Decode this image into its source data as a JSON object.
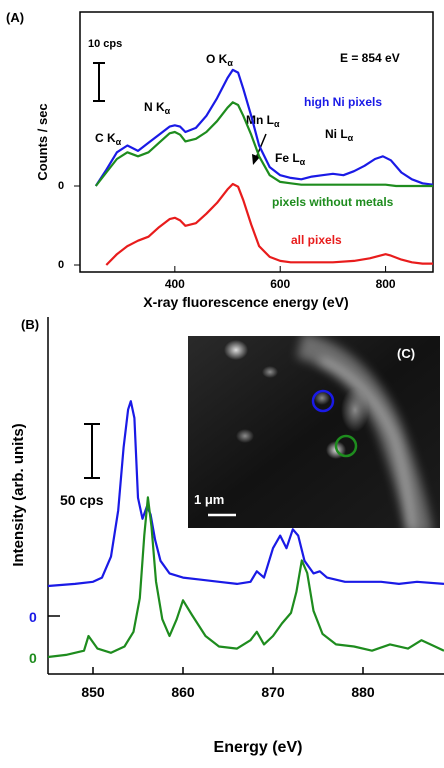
{
  "panel_a": {
    "label": "(A)",
    "scale_text": "10 cps",
    "energy_text": "E = 854 eV",
    "ylabel": "Counts / sec",
    "xlabel": "X-ray fluorescence energy (eV)",
    "zero_labels": [
      "0",
      "0"
    ],
    "peak_labels": {
      "c": "C K",
      "n": "N K",
      "o": "O K",
      "mn": "Mn L",
      "fe": "Fe L",
      "ni": "Ni L",
      "alpha": "α"
    },
    "legend": {
      "high_ni": "high Ni pixels",
      "without_metals": "pixels without metals",
      "all": "all pixels"
    }
  },
  "panel_b": {
    "label": "(B)",
    "scale_text": "50 cps",
    "ylabel": "Intensity (arb. units)",
    "xlabel": "Energy (eV)",
    "zero_labels": [
      "0",
      "0"
    ]
  },
  "panel_c": {
    "label": "(C)",
    "scale_text": "1 μm"
  },
  "colors": {
    "blue": "#1a1ae6",
    "green": "#1e8c1e",
    "red": "#e81c1c",
    "black": "#000000"
  },
  "chart_data": [
    {
      "type": "line",
      "title": "",
      "xlabel": "X-ray fluorescence energy (eV)",
      "ylabel": "Counts / sec",
      "xlim": [
        220,
        890
      ],
      "xticks": [
        400,
        600,
        800
      ],
      "series": [
        {
          "name": "high Ni pixels",
          "color": "#1a1ae6",
          "x": [
            250,
            270,
            290,
            310,
            330,
            350,
            370,
            390,
            400,
            410,
            420,
            440,
            460,
            480,
            500,
            510,
            520,
            530,
            545,
            560,
            580,
            600,
            620,
            640,
            660,
            680,
            700,
            720,
            740,
            760,
            780,
            795,
            810,
            830,
            850,
            870,
            890
          ],
          "y": [
            0,
            12,
            25,
            30,
            26,
            32,
            38,
            44,
            45,
            44,
            40,
            43,
            52,
            65,
            80,
            86,
            84,
            72,
            52,
            30,
            14,
            8,
            6,
            5,
            7,
            8,
            9,
            8,
            11,
            15,
            20,
            22,
            19,
            10,
            5,
            2,
            1
          ]
        },
        {
          "name": "pixels without metals",
          "color": "#1e8c1e",
          "x": [
            250,
            270,
            290,
            310,
            330,
            350,
            370,
            390,
            400,
            410,
            420,
            440,
            460,
            480,
            500,
            510,
            520,
            530,
            545,
            560,
            580,
            600,
            620,
            640,
            660,
            680,
            700,
            720,
            740,
            760,
            780,
            800,
            820,
            840,
            860,
            890
          ],
          "y": [
            0,
            10,
            20,
            25,
            22,
            25,
            32,
            39,
            40,
            38,
            33,
            35,
            40,
            48,
            58,
            62,
            60,
            52,
            38,
            22,
            8,
            3,
            2,
            1,
            1,
            1,
            1,
            1,
            1,
            1,
            1,
            1,
            0,
            0,
            0,
            0
          ]
        },
        {
          "name": "all pixels",
          "color": "#e81c1c",
          "x": [
            270,
            290,
            310,
            330,
            350,
            370,
            390,
            400,
            410,
            420,
            440,
            460,
            480,
            500,
            510,
            520,
            530,
            545,
            560,
            580,
            600,
            620,
            650,
            700,
            740,
            770,
            790,
            800,
            810,
            830,
            850,
            870,
            890
          ],
          "y": [
            0,
            8,
            14,
            18,
            21,
            28,
            34,
            35,
            33,
            29,
            31,
            38,
            46,
            56,
            60,
            58,
            48,
            30,
            14,
            6,
            3,
            2,
            2,
            2,
            3,
            5,
            7,
            8,
            7,
            4,
            2,
            1,
            1
          ]
        }
      ]
    },
    {
      "type": "line",
      "title": "",
      "xlabel": "Energy (eV)",
      "ylabel": "Intensity (arb. units)",
      "xlim": [
        845,
        889
      ],
      "xticks": [
        850,
        860,
        870,
        880
      ],
      "series": [
        {
          "name": "high Ni pixels",
          "color": "#1a1ae6",
          "x": [
            845,
            848,
            850,
            851,
            852,
            852.8,
            853.4,
            853.9,
            854.2,
            854.6,
            855,
            855.5,
            856,
            856.4,
            856.9,
            857.5,
            858.5,
            860,
            862,
            864,
            866,
            867.5,
            868.2,
            869,
            870,
            870.8,
            871.5,
            872.2,
            872.8,
            873.5,
            874.5,
            875.2,
            876,
            878,
            880,
            882,
            884,
            886,
            889
          ],
          "y": [
            0,
            1,
            2,
            4,
            14,
            36,
            66,
            84,
            88,
            80,
            42,
            32,
            38,
            34,
            22,
            12,
            6,
            4,
            3,
            2,
            1,
            2,
            7,
            4,
            18,
            24,
            18,
            27,
            24,
            12,
            6,
            7,
            4,
            2,
            2,
            2,
            1,
            2,
            1
          ]
        },
        {
          "name": "pixels without metals",
          "color": "#1e8c1e",
          "x": [
            845,
            847,
            849,
            849.5,
            850.5,
            852,
            853.5,
            854.5,
            855.2,
            855.7,
            856.1,
            856.5,
            857,
            857.7,
            858.5,
            859.3,
            860,
            861,
            862.5,
            864,
            866,
            867.5,
            868.2,
            869,
            870,
            871,
            872,
            872.6,
            873.2,
            873.8,
            874.5,
            875.5,
            877,
            879,
            881,
            883,
            885,
            886.5,
            888,
            889
          ],
          "y": [
            0,
            1,
            3,
            10,
            4,
            2,
            5,
            12,
            28,
            58,
            76,
            62,
            36,
            18,
            10,
            18,
            27,
            20,
            10,
            5,
            4,
            8,
            12,
            6,
            10,
            16,
            21,
            31,
            46,
            40,
            22,
            11,
            6,
            5,
            3,
            6,
            4,
            8,
            5,
            3
          ]
        }
      ]
    }
  ]
}
